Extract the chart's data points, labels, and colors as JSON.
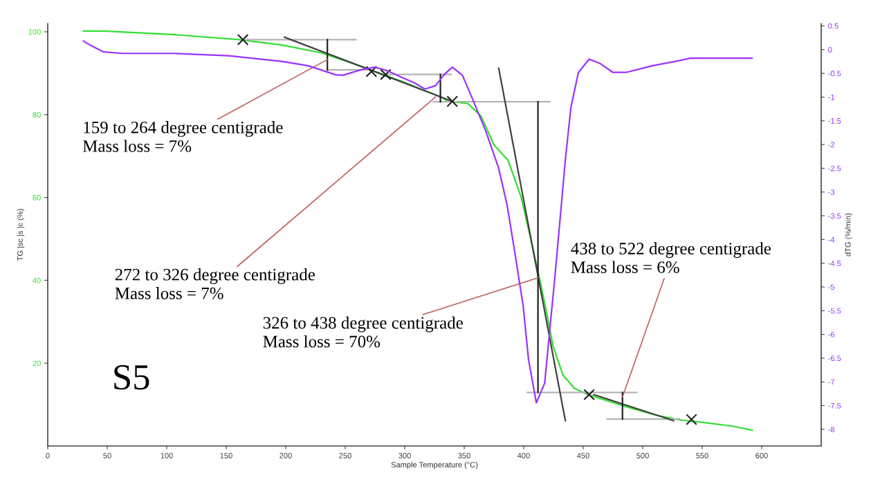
{
  "chart_data": {
    "type": "line",
    "xlabel": "Sample Temperature (°C)",
    "ylabel": "TG |sc |s |c (%)",
    "y2label": "dTG (%/min)",
    "xlim": [
      0,
      650
    ],
    "xticks": [
      0,
      50,
      100,
      150,
      200,
      250,
      300,
      350,
      400,
      450,
      500,
      550,
      600
    ],
    "ylim": [
      0,
      102
    ],
    "yticks": [
      20,
      40,
      60,
      80,
      100
    ],
    "y2lim": [
      -8.35,
      0.55
    ],
    "y2ticks": [
      0.5,
      0,
      -0.5,
      -1,
      -1.5,
      -2,
      -2.5,
      -3,
      -3.5,
      -4,
      -4.5,
      -5,
      -5.5,
      -6,
      -6.5,
      -7,
      -7.5,
      -8
    ],
    "grid": false,
    "marker": "none",
    "line_style": "solid",
    "series": [
      {
        "color": "#33dd33",
        "x": [
          30,
          47,
          107,
          161,
          197,
          230,
          264,
          297,
          330,
          337,
          353,
          364,
          375,
          387,
          398,
          406.6,
          413.5,
          420,
          424.6,
          433,
          442.6,
          454,
          486,
          509,
          531,
          553,
          575,
          592
        ],
        "values": [
          100.2,
          100.2,
          99.3,
          98.1,
          96.8,
          94.9,
          91.6,
          88.1,
          84.3,
          83.2,
          82.7,
          79.7,
          72.7,
          68.9,
          59.9,
          49.1,
          40.2,
          31.2,
          24.2,
          17.1,
          13.9,
          12.4,
          9.5,
          7.6,
          6.3,
          5.6,
          4.8,
          3.8
        ]
      },
      {
        "color": "#9933ff",
        "axis": "y2",
        "x": [
          30,
          36,
          47,
          63,
          107,
          152,
          197,
          219,
          242,
          248,
          264,
          275,
          286,
          297,
          308,
          317,
          326,
          333,
          340,
          348.5,
          357,
          368,
          379,
          386,
          392.6,
          399.6,
          404,
          410.6,
          417.6,
          421.7,
          426,
          430,
          435,
          439.7,
          446,
          455,
          464,
          475,
          486,
          508,
          531,
          540,
          592
        ],
        "values": [
          0.18,
          0.09,
          -0.05,
          -0.08,
          -0.08,
          -0.13,
          -0.25,
          -0.34,
          -0.53,
          -0.54,
          -0.42,
          -0.37,
          -0.45,
          -0.58,
          -0.7,
          -0.83,
          -0.76,
          -0.53,
          -0.37,
          -0.54,
          -1.04,
          -1.71,
          -2.5,
          -3.27,
          -4.28,
          -5.41,
          -6.52,
          -7.44,
          -7.03,
          -5.96,
          -4.84,
          -3.73,
          -2.32,
          -1.21,
          -0.48,
          -0.2,
          -0.29,
          -0.48,
          -0.48,
          -0.34,
          -0.23,
          -0.18,
          -0.18
        ]
      },
      {
        "color": "#b4b4b4",
        "x": [
          164,
          259
        ],
        "values": [
          98.1,
          98.1
        ]
      },
      {
        "color": "#b4b4b4",
        "x": [
          235,
          268
        ],
        "values": [
          90.8,
          90.8
        ]
      },
      {
        "color": "#b4b4b4",
        "x": [
          286,
          339
        ],
        "values": [
          89.7,
          89.7
        ]
      },
      {
        "color": "#b4b4b4",
        "x": [
          324,
          422
        ],
        "values": [
          83.1,
          83.1
        ]
      },
      {
        "color": "#b4b4b4",
        "x": [
          403,
          495
        ],
        "values": [
          12.9,
          12.9
        ]
      },
      {
        "color": "#b4b4b4",
        "x": [
          470,
          531
        ],
        "values": [
          6.5,
          6.5
        ]
      },
      {
        "color": "#404040",
        "x": [
          199,
          340
        ],
        "values": [
          98.7,
          83.2
        ]
      },
      {
        "color": "#404040",
        "x": [
          379,
          435
        ],
        "values": [
          91.2,
          6.1
        ]
      },
      {
        "color": "#404040",
        "x": [
          459,
          526
        ],
        "values": [
          12.4,
          6.1
        ]
      },
      {
        "color": "#202020",
        "x": [
          235,
          235
        ],
        "values": [
          98.1,
          90.8
        ]
      },
      {
        "color": "#202020",
        "x": [
          330,
          330
        ],
        "values": [
          89.7,
          83.1
        ]
      },
      {
        "color": "#202020",
        "x": [
          412,
          412
        ],
        "values": [
          83.1,
          12.9
        ]
      },
      {
        "color": "#202020",
        "x": [
          483,
          483
        ],
        "values": [
          12.9,
          6.5
        ]
      },
      {
        "type": "scatter",
        "marker": "cross",
        "color": "#202020",
        "x": [
          164,
          272,
          284,
          340,
          455,
          541
        ],
        "values": [
          98.1,
          90.4,
          89.7,
          83.2,
          12.4,
          6.4
        ]
      }
    ],
    "annotations": [
      {
        "text": "159 to 264 degree centigrade\nMass loss = 7%",
        "x": 235,
        "y": 93.3
      },
      {
        "text": "272 to 326 degree centigrade\nMass loss = 7%",
        "x": 326,
        "y": 84.3
      },
      {
        "text": "326 to 438 degree centigrade\nMass loss = 70%",
        "x": 412,
        "y": 40.6
      },
      {
        "text": "438 to 522 degree centigrade\nMass loss = 6%",
        "x": 483,
        "y": 11.8
      },
      "S5"
    ]
  }
}
